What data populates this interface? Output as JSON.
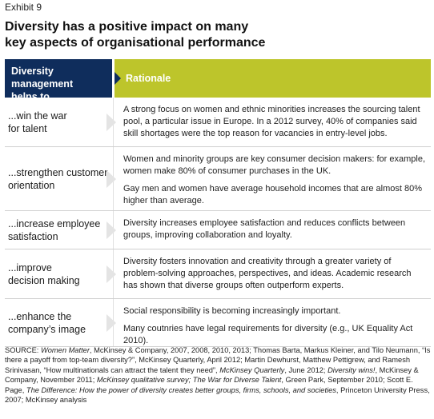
{
  "exhibit": "Exhibit 9",
  "title_lines": [
    "Diversity has a positive impact on many",
    "key aspects of organisational performance"
  ],
  "header": {
    "left_lines": [
      "Diversity management",
      "helps to..."
    ],
    "right": "Rationale"
  },
  "rows": [
    {
      "label_lines": [
        "...win the war",
        "for talent"
      ],
      "paragraphs": [
        "A strong focus on women and ethnic minorities increases the sourcing talent pool, a particular issue in Europe. In a 2012 survey, 40% of companies said skill shortages were the top reason for vacancies in entry-level jobs."
      ]
    },
    {
      "label_lines": [
        "...strengthen customer",
        "orientation"
      ],
      "paragraphs": [
        "Women and minority groups are key consumer decision makers: for example, women make 80% of consumer purchases in the UK.",
        "Gay men and women have average household incomes that are almost 80% higher than average."
      ]
    },
    {
      "label_lines": [
        "...increase employee",
        "satisfaction"
      ],
      "paragraphs": [
        "Diversity increases employee satisfaction and reduces conflicts between groups, improving collaboration and loyalty."
      ]
    },
    {
      "label_lines": [
        "...improve",
        "decision making"
      ],
      "paragraphs": [
        "Diversity fosters innovation and creativity through a greater variety of problem-solving approaches, perspectives, and ideas. Academic research has shown that diverse groups often outperform experts."
      ]
    },
    {
      "label_lines": [
        "...enhance the",
        "company’s image"
      ],
      "paragraphs": [
        "Social responsibility is becoming increasingly important.",
        "Many coutnries have legal requirements for diversity (e.g., UK Equality Act 2010)."
      ]
    }
  ],
  "source": {
    "label": "SOURCE:",
    "parts": [
      {
        "t": " ",
        "i": false
      },
      {
        "t": "Women Matter",
        "i": true
      },
      {
        "t": ", McKinsey & Company, 2007, 2008, 2010, 2013; Thomas Barta, Markus Kleiner, and Tilo Neumann, “Is there a payoff from top-team diversity?”, McKinsey Quarterly, April 2012; Martin Dewhurst, Matthew Pettigrew, and Ramesh Srinivasan, “How multinationals can attract the talent they need”, ",
        "i": false
      },
      {
        "t": "McKinsey Quarterly",
        "i": true
      },
      {
        "t": ", June 2012; ",
        "i": false
      },
      {
        "t": "Diversity wins!",
        "i": true
      },
      {
        "t": ", McKinsey & Company, November 2011; ",
        "i": false
      },
      {
        "t": "McKinsey qualitative survey; The War for Diverse Talent",
        "i": true
      },
      {
        "t": ", Green Park, September 2010; Scott E. Page, ",
        "i": false
      },
      {
        "t": "The Difference: How the power of diversity creates better groups, firms, schools, and societies",
        "i": true
      },
      {
        "t": ", Princeton University Press, 2007; McKinsey analysis",
        "i": false
      }
    ]
  }
}
